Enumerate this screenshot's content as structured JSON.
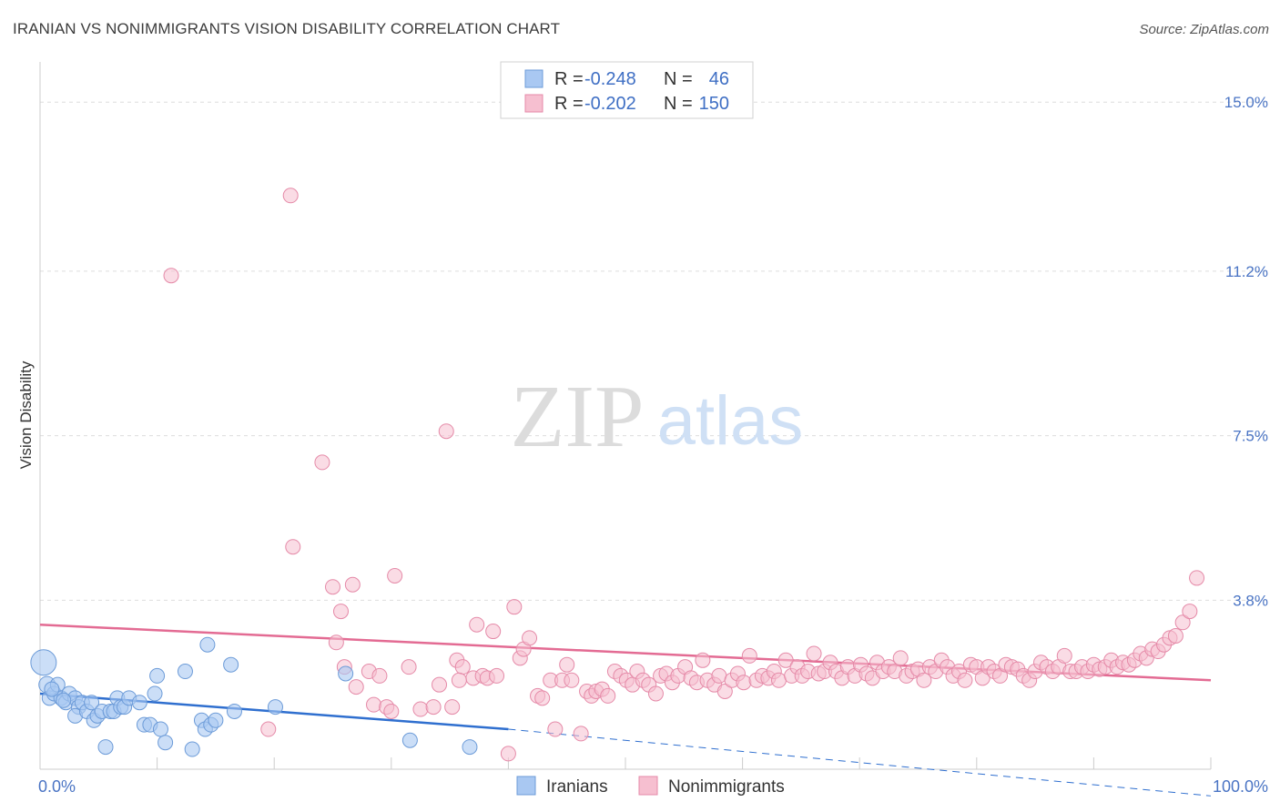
{
  "header": {
    "title": "IRANIAN VS NONIMMIGRANTS VISION DISABILITY CORRELATION CHART",
    "source": "Source: ZipAtlas.com"
  },
  "watermark": {
    "zip": "ZIP",
    "atlas": "atlas"
  },
  "colors": {
    "blue_fill": "#a9c8f2",
    "blue_stroke": "#6c9bd8",
    "blue_line": "#2f6fcf",
    "pink_fill": "#f6bfd0",
    "pink_stroke": "#e58aa8",
    "pink_line": "#e36b93",
    "tick_label": "#4a74c4",
    "grid": "#dddddd"
  },
  "chart_data": {
    "type": "scatter",
    "title": "IRANIAN VS NONIMMIGRANTS VISION DISABILITY CORRELATION CHART",
    "xlabel": "",
    "ylabel": "Vision Disability",
    "xlim": [
      0,
      100
    ],
    "ylim": [
      0,
      15.7
    ],
    "x_tick_labels": [
      "0.0%",
      "100.0%"
    ],
    "y_ticks": [
      3.8,
      7.5,
      11.2,
      15.0
    ],
    "y_tick_labels": [
      "3.8%",
      "7.5%",
      "11.2%",
      "15.0%"
    ],
    "grid": true,
    "legend": {
      "placement": "top-center",
      "entries": [
        {
          "r_label": "R = ",
          "r_value": "-0.248",
          "n_label": "N = ",
          "n_value": "46"
        },
        {
          "r_label": "R = ",
          "r_value": "-0.202",
          "n_label": "N = ",
          "n_value": "150"
        }
      ]
    },
    "series": [
      {
        "name": "Iranians",
        "color": "#a9c8f2",
        "trend": {
          "x": [
            0,
            40
          ],
          "y": [
            1.7,
            0.9
          ],
          "dashed_to": [
            100,
            -0.6
          ]
        },
        "points": [
          [
            0.3,
            2.4,
            14
          ],
          [
            0.6,
            1.9,
            9
          ],
          [
            0.8,
            1.6,
            8
          ],
          [
            1.2,
            1.7,
            8
          ],
          [
            1.5,
            1.9,
            8
          ],
          [
            1.8,
            1.6,
            8
          ],
          [
            2.2,
            1.5,
            8
          ],
          [
            2.5,
            1.7,
            8
          ],
          [
            3.0,
            1.6,
            8
          ],
          [
            3.3,
            1.4,
            8
          ],
          [
            3.0,
            1.2,
            8
          ],
          [
            3.6,
            1.5,
            8
          ],
          [
            4.0,
            1.3,
            8
          ],
          [
            4.4,
            1.5,
            8
          ],
          [
            4.6,
            1.1,
            8
          ],
          [
            4.9,
            1.2,
            8
          ],
          [
            5.3,
            1.3,
            8
          ],
          [
            5.6,
            0.5,
            8
          ],
          [
            6.0,
            1.3,
            8
          ],
          [
            6.3,
            1.3,
            8
          ],
          [
            6.6,
            1.6,
            8
          ],
          [
            6.9,
            1.4,
            8
          ],
          [
            7.2,
            1.4,
            8
          ],
          [
            7.6,
            1.6,
            8
          ],
          [
            8.5,
            1.5,
            8
          ],
          [
            8.9,
            1.0,
            8
          ],
          [
            9.4,
            1.0,
            8
          ],
          [
            9.8,
            1.7,
            8
          ],
          [
            10.0,
            2.1,
            8
          ],
          [
            10.3,
            0.9,
            8
          ],
          [
            10.7,
            0.6,
            8
          ],
          [
            12.4,
            2.2,
            8
          ],
          [
            13.0,
            0.45,
            8
          ],
          [
            13.8,
            1.1,
            8
          ],
          [
            14.1,
            0.9,
            8
          ],
          [
            14.3,
            2.8,
            8
          ],
          [
            14.6,
            1.0,
            8
          ],
          [
            15.0,
            1.1,
            8
          ],
          [
            16.3,
            2.35,
            8
          ],
          [
            16.6,
            1.3,
            8
          ],
          [
            20.1,
            1.4,
            8
          ],
          [
            26.1,
            2.15,
            8
          ],
          [
            31.6,
            0.65,
            8
          ],
          [
            36.7,
            0.5,
            8
          ],
          [
            1.0,
            1.8,
            8
          ],
          [
            2.0,
            1.55,
            8
          ]
        ]
      },
      {
        "name": "Nonimmigrants",
        "color": "#f6bfd0",
        "trend": {
          "x": [
            0,
            100
          ],
          "y": [
            3.25,
            2.0
          ]
        },
        "points": [
          [
            11.2,
            11.1,
            8
          ],
          [
            21.4,
            12.9,
            8
          ],
          [
            24.1,
            6.9,
            8
          ],
          [
            21.6,
            5.0,
            8
          ],
          [
            25.0,
            4.1,
            8
          ],
          [
            26.7,
            4.15,
            8
          ],
          [
            30.3,
            4.35,
            8
          ],
          [
            25.7,
            3.55,
            8
          ],
          [
            25.3,
            2.85,
            8
          ],
          [
            26.0,
            2.3,
            8
          ],
          [
            27.0,
            1.85,
            8
          ],
          [
            28.1,
            2.2,
            8
          ],
          [
            28.5,
            1.45,
            8
          ],
          [
            29.0,
            2.1,
            8
          ],
          [
            29.6,
            1.4,
            8
          ],
          [
            30.0,
            1.3,
            8
          ],
          [
            31.5,
            2.3,
            8
          ],
          [
            32.5,
            1.35,
            8
          ],
          [
            33.6,
            1.4,
            8
          ],
          [
            34.1,
            1.9,
            8
          ],
          [
            34.7,
            7.6,
            8
          ],
          [
            35.2,
            1.4,
            8
          ],
          [
            35.6,
            2.45,
            8
          ],
          [
            36.1,
            2.3,
            8
          ],
          [
            37.0,
            2.05,
            8
          ],
          [
            37.3,
            3.25,
            8
          ],
          [
            37.8,
            2.1,
            8
          ],
          [
            38.2,
            2.05,
            8
          ],
          [
            38.7,
            3.1,
            8
          ],
          [
            39.0,
            2.1,
            8
          ],
          [
            40.0,
            0.35,
            8
          ],
          [
            40.5,
            3.65,
            8
          ],
          [
            41.0,
            2.5,
            8
          ],
          [
            41.3,
            2.7,
            8
          ],
          [
            41.8,
            2.95,
            8
          ],
          [
            42.5,
            1.65,
            8
          ],
          [
            42.9,
            1.6,
            8
          ],
          [
            43.6,
            2.0,
            8
          ],
          [
            44.0,
            0.9,
            8
          ],
          [
            44.6,
            2.0,
            8
          ],
          [
            45.0,
            2.35,
            8
          ],
          [
            45.4,
            2.0,
            8
          ],
          [
            46.2,
            0.8,
            8
          ],
          [
            46.7,
            1.75,
            8
          ],
          [
            47.1,
            1.65,
            8
          ],
          [
            47.5,
            1.75,
            8
          ],
          [
            48.0,
            1.8,
            8
          ],
          [
            48.5,
            1.65,
            8
          ],
          [
            49.1,
            2.2,
            8
          ],
          [
            49.6,
            2.1,
            8
          ],
          [
            50.1,
            2.0,
            8
          ],
          [
            50.6,
            1.9,
            8
          ],
          [
            51.0,
            2.2,
            8
          ],
          [
            51.5,
            2.0,
            8
          ],
          [
            52.0,
            1.9,
            8
          ],
          [
            52.6,
            1.7,
            8
          ],
          [
            53.0,
            2.1,
            8
          ],
          [
            53.5,
            2.15,
            8
          ],
          [
            54.0,
            1.95,
            8
          ],
          [
            54.5,
            2.1,
            8
          ],
          [
            55.1,
            2.3,
            8
          ],
          [
            55.6,
            2.05,
            8
          ],
          [
            56.1,
            1.95,
            8
          ],
          [
            56.6,
            2.45,
            8
          ],
          [
            57.0,
            2.0,
            8
          ],
          [
            57.6,
            1.9,
            8
          ],
          [
            58.0,
            2.1,
            8
          ],
          [
            58.5,
            1.75,
            8
          ],
          [
            59.1,
            2.0,
            8
          ],
          [
            59.6,
            2.15,
            8
          ],
          [
            60.1,
            1.95,
            8
          ],
          [
            60.6,
            2.55,
            8
          ],
          [
            61.2,
            2.0,
            8
          ],
          [
            61.7,
            2.1,
            8
          ],
          [
            62.2,
            2.05,
            8
          ],
          [
            62.7,
            2.2,
            8
          ],
          [
            63.1,
            2.0,
            8
          ],
          [
            63.7,
            2.45,
            8
          ],
          [
            64.2,
            2.1,
            8
          ],
          [
            64.7,
            2.3,
            8
          ],
          [
            65.1,
            2.1,
            8
          ],
          [
            65.6,
            2.2,
            8
          ],
          [
            66.1,
            2.6,
            8
          ],
          [
            66.5,
            2.15,
            8
          ],
          [
            67.0,
            2.2,
            8
          ],
          [
            67.5,
            2.4,
            8
          ],
          [
            68.0,
            2.2,
            8
          ],
          [
            68.5,
            2.05,
            8
          ],
          [
            69.0,
            2.3,
            8
          ],
          [
            69.6,
            2.1,
            8
          ],
          [
            70.1,
            2.35,
            8
          ],
          [
            70.6,
            2.15,
            8
          ],
          [
            71.1,
            2.05,
            8
          ],
          [
            71.5,
            2.4,
            8
          ],
          [
            72.0,
            2.2,
            8
          ],
          [
            72.5,
            2.3,
            8
          ],
          [
            73.0,
            2.2,
            8
          ],
          [
            73.5,
            2.5,
            8
          ],
          [
            74.0,
            2.1,
            8
          ],
          [
            74.5,
            2.2,
            8
          ],
          [
            75.0,
            2.25,
            8
          ],
          [
            75.5,
            2.0,
            8
          ],
          [
            76.0,
            2.3,
            8
          ],
          [
            76.5,
            2.2,
            8
          ],
          [
            77.0,
            2.45,
            8
          ],
          [
            77.5,
            2.3,
            8
          ],
          [
            78.0,
            2.1,
            8
          ],
          [
            78.5,
            2.2,
            8
          ],
          [
            79.0,
            2.0,
            8
          ],
          [
            79.5,
            2.35,
            8
          ],
          [
            80.0,
            2.3,
            8
          ],
          [
            80.5,
            2.05,
            8
          ],
          [
            81.0,
            2.3,
            8
          ],
          [
            81.5,
            2.2,
            8
          ],
          [
            82.0,
            2.1,
            8
          ],
          [
            82.5,
            2.35,
            8
          ],
          [
            83.0,
            2.3,
            8
          ],
          [
            83.5,
            2.25,
            8
          ],
          [
            84.0,
            2.1,
            8
          ],
          [
            84.5,
            2.0,
            8
          ],
          [
            85.0,
            2.2,
            8
          ],
          [
            85.5,
            2.4,
            8
          ],
          [
            86.0,
            2.3,
            8
          ],
          [
            86.5,
            2.2,
            8
          ],
          [
            87.0,
            2.3,
            8
          ],
          [
            87.5,
            2.55,
            8
          ],
          [
            88.0,
            2.2,
            8
          ],
          [
            88.5,
            2.2,
            8
          ],
          [
            89.0,
            2.3,
            8
          ],
          [
            89.5,
            2.2,
            8
          ],
          [
            90.0,
            2.35,
            8
          ],
          [
            90.5,
            2.25,
            8
          ],
          [
            91.0,
            2.3,
            8
          ],
          [
            91.5,
            2.45,
            8
          ],
          [
            92.0,
            2.3,
            8
          ],
          [
            92.5,
            2.4,
            8
          ],
          [
            93.0,
            2.35,
            8
          ],
          [
            93.5,
            2.45,
            8
          ],
          [
            94.0,
            2.6,
            8
          ],
          [
            94.5,
            2.5,
            8
          ],
          [
            95.0,
            2.7,
            8
          ],
          [
            95.5,
            2.65,
            8
          ],
          [
            96.0,
            2.8,
            8
          ],
          [
            96.5,
            2.95,
            8
          ],
          [
            97.0,
            3.0,
            8
          ],
          [
            97.6,
            3.3,
            8
          ],
          [
            98.2,
            3.55,
            8
          ],
          [
            98.8,
            4.3,
            8
          ],
          [
            19.5,
            0.9,
            8
          ],
          [
            35.8,
            2.0,
            8
          ]
        ]
      }
    ]
  },
  "bottom_legend": [
    {
      "label": "Iranians"
    },
    {
      "label": "Nonimmigrants"
    }
  ]
}
